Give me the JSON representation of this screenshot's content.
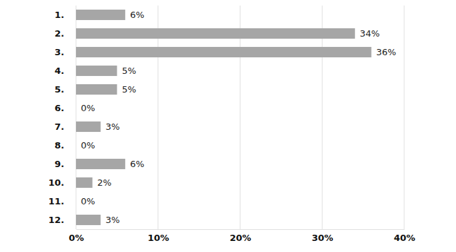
{
  "chart_data": {
    "type": "bar",
    "orientation": "horizontal",
    "categories": [
      "1.",
      "2.",
      "3.",
      "4.",
      "5.",
      "6.",
      "7.",
      "8.",
      "9.",
      "10.",
      "11.",
      "12."
    ],
    "values": [
      6,
      34,
      36,
      5,
      5,
      0,
      3,
      0,
      6,
      2,
      0,
      3
    ],
    "value_labels": [
      "6%",
      "34%",
      "36%",
      "5%",
      "5%",
      "0%",
      "3%",
      "0%",
      "6%",
      "2%",
      "0%",
      "3%"
    ],
    "color": "#a6a6a6",
    "xlim": [
      0,
      40
    ],
    "xticks": [
      {
        "value": 0,
        "label": "0%"
      },
      {
        "value": 10,
        "label": "10%"
      },
      {
        "value": 20,
        "label": "20%"
      },
      {
        "value": 30,
        "label": "30%"
      },
      {
        "value": 40,
        "label": "40%"
      }
    ],
    "grid": true,
    "data_labels": true
  }
}
